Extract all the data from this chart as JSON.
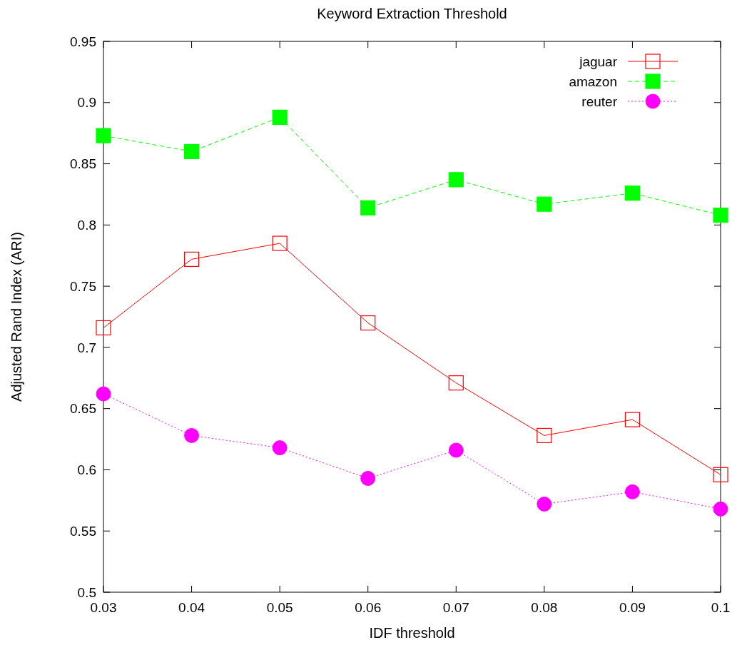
{
  "chart_data": {
    "type": "line",
    "title": "Keyword Extraction Threshold",
    "xlabel": "IDF threshold",
    "ylabel": "Adjusted Rand Index (ARI)",
    "x": [
      0.03,
      0.04,
      0.05,
      0.06,
      0.07,
      0.08,
      0.09,
      0.1
    ],
    "xlim": [
      0.03,
      0.1
    ],
    "xticks": [
      0.03,
      0.04,
      0.05,
      0.06,
      0.07,
      0.08,
      0.09,
      0.1
    ],
    "ylim": [
      0.5,
      0.95
    ],
    "yticks": [
      0.5,
      0.55,
      0.6,
      0.65,
      0.7,
      0.75,
      0.8,
      0.85,
      0.9,
      0.95
    ],
    "grid": false,
    "legend": "top right",
    "series": [
      {
        "name": "jaguar",
        "color": "#ff0000",
        "marker": "square",
        "line_style": "solid",
        "values": [
          0.716,
          0.772,
          0.785,
          0.72,
          0.671,
          0.628,
          0.641,
          0.596
        ]
      },
      {
        "name": "amazon",
        "color": "#00ff00",
        "marker": "square",
        "line_style": "dashed",
        "values": [
          0.873,
          0.86,
          0.888,
          0.814,
          0.837,
          0.817,
          0.826,
          0.808
        ]
      },
      {
        "name": "reuter",
        "color": "#ff00ff",
        "marker": "circle",
        "line_style": "dotted",
        "values": [
          0.662,
          0.628,
          0.618,
          0.593,
          0.616,
          0.572,
          0.582,
          0.568
        ]
      }
    ]
  }
}
